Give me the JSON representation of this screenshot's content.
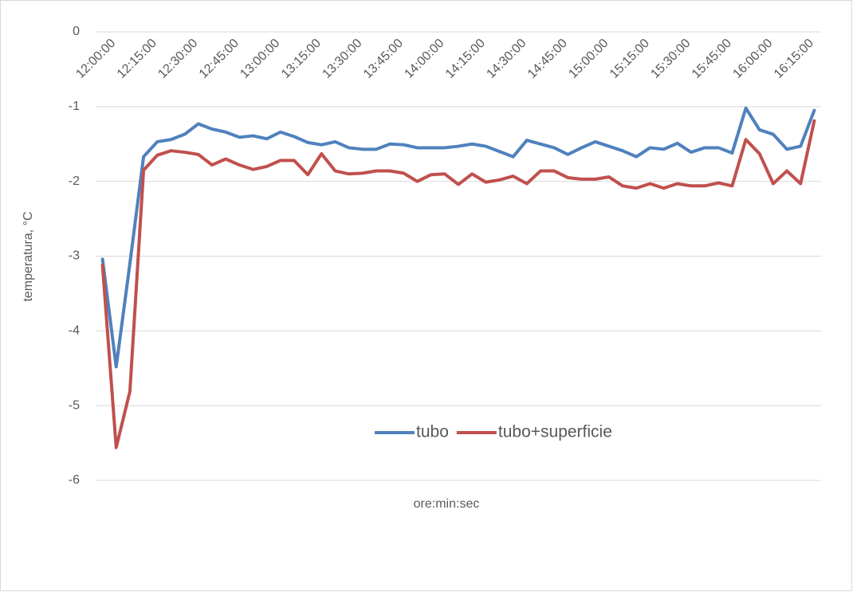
{
  "chart_data": {
    "type": "line",
    "xlabel": "ore:min:sec",
    "ylabel": "temperatura, °C",
    "categories": [
      "12:00:00",
      null,
      null,
      "12:15:00",
      null,
      null,
      "12:30:00",
      null,
      null,
      "12:45:00",
      null,
      null,
      "13:00:00",
      null,
      null,
      "13:15:00",
      null,
      null,
      "13:30:00",
      null,
      null,
      "13:45:00",
      null,
      null,
      "14:00:00",
      null,
      null,
      "14:15:00",
      null,
      null,
      "14:30:00",
      null,
      null,
      "14:45:00",
      null,
      null,
      "15:00:00",
      null,
      null,
      "15:15:00",
      null,
      null,
      "15:30:00",
      null,
      null,
      "15:45:00",
      null,
      null,
      "16:00:00",
      null,
      null,
      "16:15:00",
      null
    ],
    "series": [
      {
        "name": "tubo",
        "color": "#4f81bd",
        "values": [
          -3.04,
          -4.48,
          -3.1,
          -1.67,
          -1.47,
          -1.44,
          -1.37,
          -1.23,
          -1.3,
          -1.34,
          -1.41,
          -1.39,
          -1.43,
          -1.34,
          -1.4,
          -1.48,
          -1.51,
          -1.47,
          -1.55,
          -1.57,
          -1.57,
          -1.5,
          -1.51,
          -1.55,
          -1.55,
          -1.55,
          -1.53,
          -1.5,
          -1.53,
          -1.6,
          -1.67,
          -1.45,
          -1.5,
          -1.55,
          -1.64,
          -1.55,
          -1.47,
          -1.53,
          -1.59,
          -1.67,
          -1.55,
          -1.57,
          -1.49,
          -1.61,
          -1.55,
          -1.55,
          -1.62,
          -1.02,
          -1.31,
          -1.37,
          -1.57,
          -1.53,
          -1.05
        ]
      },
      {
        "name": "tubo+superficie",
        "color": "#c0504d",
        "values": [
          -3.12,
          -5.56,
          -4.81,
          -1.85,
          -1.65,
          -1.59,
          -1.61,
          -1.64,
          -1.78,
          -1.7,
          -1.78,
          -1.84,
          -1.8,
          -1.72,
          -1.72,
          -1.91,
          -1.63,
          -1.86,
          -1.9,
          -1.89,
          -1.86,
          -1.86,
          -1.89,
          -2.0,
          -1.91,
          -1.9,
          -2.04,
          -1.9,
          -2.01,
          -1.98,
          -1.93,
          -2.03,
          -1.86,
          -1.86,
          -1.95,
          -1.97,
          -1.97,
          -1.94,
          -2.06,
          -2.09,
          -2.03,
          -2.09,
          -2.03,
          -2.06,
          -2.06,
          -2.02,
          -2.06,
          -1.44,
          -1.63,
          -2.03,
          -1.86,
          -2.03,
          -1.19
        ]
      }
    ],
    "ylim": [
      -6,
      0
    ],
    "yticks": [
      0,
      -1,
      -2,
      -3,
      -4,
      -5,
      -6
    ],
    "grid": true
  }
}
